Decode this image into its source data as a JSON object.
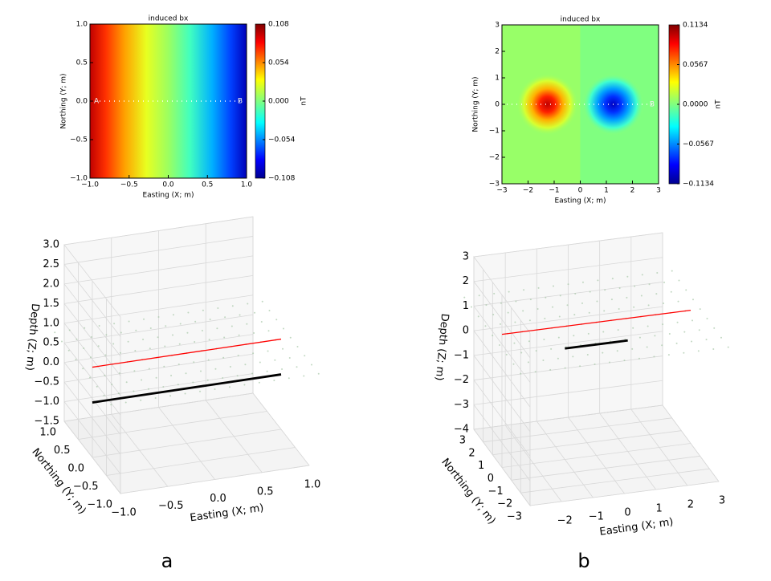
{
  "chart_data": [
    {
      "type": "contour",
      "title": "induced bx",
      "xlabel": "Easting (X; m)",
      "ylabel": "Northing (Y; m)",
      "xlim": [
        -1,
        1
      ],
      "ylim": [
        -1,
        1
      ],
      "xticks": [
        {
          "value": -1,
          "label": "−1.0"
        },
        {
          "value": -0.5,
          "label": "−0.5"
        },
        {
          "value": 0,
          "label": "0.0"
        },
        0.5,
        {
          "value": 1,
          "label": "1.0"
        }
      ],
      "yticks": [
        {
          "value": -1,
          "label": "−1.0"
        },
        {
          "value": -0.5,
          "label": "−0.5"
        },
        {
          "value": 0,
          "label": "0.0"
        },
        0.5,
        {
          "value": 1,
          "label": "1.0"
        }
      ],
      "annotations": [
        "A",
        "B"
      ],
      "colorbar": {
        "label": "nT",
        "lim": [
          -0.108,
          0.108
        ],
        "ticks": [
          {
            "value": -0.108,
            "label": "−0.108"
          },
          {
            "value": -0.054,
            "label": "−0.054"
          },
          {
            "value": 0,
            "label": "0.000"
          },
          0.054,
          0.108
        ]
      }
    },
    {
      "type": "contour",
      "title": "induced bx",
      "xlabel": "Easting (X; m)",
      "ylabel": "Northing (Y; m)",
      "xlim": [
        -3,
        3
      ],
      "ylim": [
        -3,
        3
      ],
      "xticks": [
        {
          "value": -3,
          "label": "−3"
        },
        {
          "value": -2,
          "label": "−2"
        },
        {
          "value": -1,
          "label": "−1"
        },
        0,
        1,
        2,
        3
      ],
      "yticks": [
        {
          "value": -3,
          "label": "−3"
        },
        {
          "value": -2,
          "label": "−2"
        },
        {
          "value": -1,
          "label": "−1"
        },
        0,
        1,
        2,
        3
      ],
      "annotations": [
        "B"
      ],
      "colorbar": {
        "label": "nT",
        "lim": [
          -0.1134,
          0.1134
        ],
        "ticks": [
          {
            "value": -0.1134,
            "label": "−0.1134"
          },
          {
            "value": -0.0567,
            "label": "−0.0567"
          },
          {
            "value": 0,
            "label": "0.0000"
          },
          0.0567,
          0.1134
        ]
      }
    },
    {
      "type": "line3d",
      "xlabel": "Easting (X; m)",
      "ylabel": "Northing (Y; m)",
      "zlabel": "Depth (Z; m)",
      "xlim": [
        -1,
        1
      ],
      "ylim": [
        -1,
        1
      ],
      "zlim": [
        -1.5,
        3
      ],
      "xticks": [
        {
          "value": -1,
          "label": "−1.0"
        },
        {
          "value": -0.5,
          "label": "−0.5"
        },
        {
          "value": 0,
          "label": "0.0"
        },
        0.5,
        {
          "value": 1,
          "label": "1.0"
        }
      ],
      "yticks": [
        {
          "value": -1,
          "label": "−1.0"
        },
        {
          "value": -0.5,
          "label": "−0.5"
        },
        {
          "value": 0,
          "label": "0.0"
        },
        0.5,
        {
          "value": 1,
          "label": "1.0"
        }
      ],
      "zticks": [
        {
          "value": -1.5,
          "label": "−1.5"
        },
        {
          "value": -1,
          "label": "−1.0"
        },
        {
          "value": -0.5,
          "label": "−0.5"
        },
        {
          "value": 0,
          "label": "0.0"
        },
        0.5,
        {
          "value": 1,
          "label": "1.0"
        },
        1.5,
        {
          "value": 2,
          "label": "2.0"
        },
        2.5,
        {
          "value": 3,
          "label": "3.0"
        }
      ],
      "series": [
        {
          "color": "#ff0000",
          "x": [
            -1,
            1
          ],
          "y": [
            0,
            0
          ],
          "z": [
            0.8,
            0.8
          ]
        },
        {
          "color": "#000000",
          "x": [
            -1,
            1
          ],
          "y": [
            0,
            0
          ],
          "z": [
            -0.1,
            -0.1
          ]
        }
      ]
    },
    {
      "type": "line3d",
      "xlabel": "Easting (X; m)",
      "ylabel": "Northing (Y; m)",
      "zlabel": "Depth (Z; m)",
      "xlim": [
        -3,
        3
      ],
      "ylim": [
        -3,
        3
      ],
      "zlim": [
        -4,
        3
      ],
      "xticks": [
        {
          "value": -2,
          "label": "−2"
        },
        {
          "value": -1,
          "label": "−1"
        },
        0,
        1,
        2,
        3
      ],
      "yticks": [
        {
          "value": -3,
          "label": "−3"
        },
        {
          "value": -2,
          "label": "−2"
        },
        {
          "value": -1,
          "label": "−1"
        },
        0,
        1,
        2,
        3
      ],
      "zticks": [
        {
          "value": -4,
          "label": "−4"
        },
        {
          "value": -3,
          "label": "−3"
        },
        {
          "value": -2,
          "label": "−2"
        },
        {
          "value": -1,
          "label": "−1"
        },
        0,
        1,
        2,
        3
      ],
      "series": [
        {
          "color": "#ff0000",
          "x": [
            -3,
            3
          ],
          "y": [
            0,
            0
          ],
          "z": [
            1.4,
            1.4
          ]
        },
        {
          "color": "#000000",
          "x": [
            -1,
            1
          ],
          "y": [
            0,
            0
          ],
          "z": [
            0.5,
            0.5
          ]
        }
      ]
    }
  ],
  "captions": [
    "a",
    "b"
  ]
}
